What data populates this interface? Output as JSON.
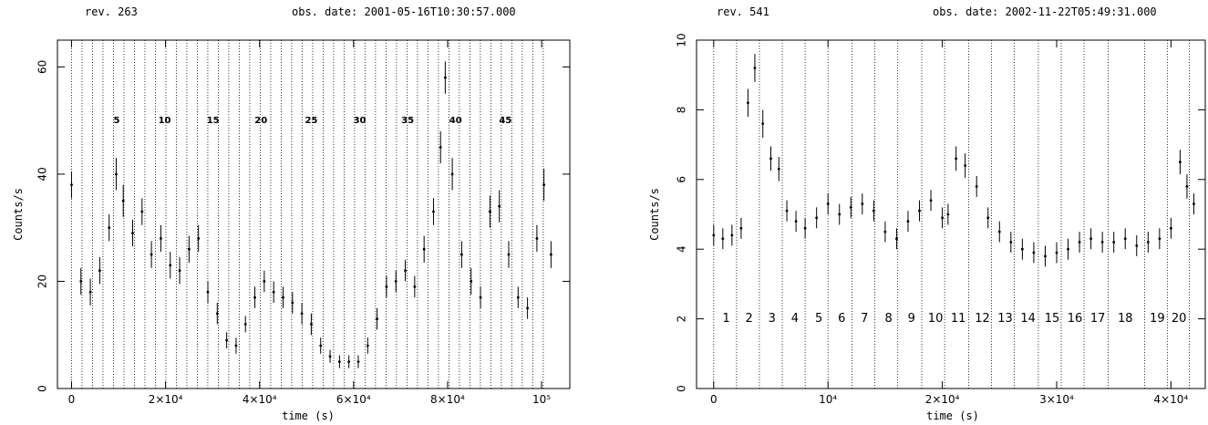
{
  "chart_data": [
    {
      "type": "scatter",
      "header_left": "rev. 263",
      "header_right": "obs. date: 2001-05-16T10:30:57.000",
      "xlabel": "time (s)",
      "ylabel": "Counts/s",
      "xlim": [
        -3000,
        106000
      ],
      "ylim": [
        0,
        65
      ],
      "xticks": [
        {
          "v": 0,
          "t": "0"
        },
        {
          "v": 20000,
          "t": "2×10⁴"
        },
        {
          "v": 40000,
          "t": "4×10⁴"
        },
        {
          "v": 60000,
          "t": "6×10⁴"
        },
        {
          "v": 80000,
          "t": "8×10⁴"
        },
        {
          "v": 100000,
          "t": "10⁵"
        }
      ],
      "yticks": [
        0,
        20,
        40,
        60
      ],
      "boundaries": [
        0,
        2230,
        4460,
        6690,
        8920,
        11150,
        13380,
        15610,
        17840,
        20070,
        22300,
        24530,
        26760,
        28990,
        31220,
        33450,
        35680,
        37910,
        40140,
        42370,
        44600,
        46830,
        49060,
        51290,
        53520,
        55750,
        57980,
        60210,
        62440,
        64670,
        66900,
        69130,
        71360,
        73590,
        75820,
        78050,
        80280,
        82510,
        84740,
        86970,
        89200,
        91430,
        93660,
        95890,
        98120,
        100350
      ],
      "segment_labels": [
        {
          "x": 9600,
          "y": 50,
          "t": "5"
        },
        {
          "x": 19800,
          "y": 50,
          "t": "10"
        },
        {
          "x": 30100,
          "y": 50,
          "t": "15"
        },
        {
          "x": 40300,
          "y": 50,
          "t": "20"
        },
        {
          "x": 51000,
          "y": 50,
          "t": "25"
        },
        {
          "x": 61300,
          "y": 50,
          "t": "30"
        },
        {
          "x": 71500,
          "y": 50,
          "t": "35"
        },
        {
          "x": 81700,
          "y": 50,
          "t": "40"
        },
        {
          "x": 92300,
          "y": 50,
          "t": "45"
        }
      ],
      "x": [
        0,
        2000,
        4000,
        6000,
        8000,
        9500,
        11000,
        13000,
        15000,
        17000,
        19000,
        21000,
        23000,
        25000,
        27000,
        29000,
        31000,
        33000,
        35000,
        37000,
        39000,
        41000,
        43000,
        45000,
        47000,
        49000,
        51000,
        53000,
        55000,
        57000,
        59000,
        61000,
        63000,
        65000,
        67000,
        69000,
        71000,
        73000,
        75000,
        77000,
        78500,
        79500,
        81000,
        83000,
        85000,
        87000,
        89000,
        91000,
        93000,
        95000,
        97000,
        99000,
        100500,
        102000
      ],
      "values": [
        38,
        20,
        18,
        22,
        30,
        40,
        35,
        29,
        33,
        25,
        28,
        23,
        22,
        26,
        28,
        18,
        14,
        9,
        8,
        12,
        17,
        20,
        18,
        17,
        16,
        14,
        12,
        8,
        6,
        5,
        5,
        5,
        8,
        13,
        19,
        20,
        22,
        19,
        26,
        33,
        45,
        58,
        40,
        25,
        20,
        17,
        33,
        34,
        25,
        17,
        15,
        28,
        38,
        25
      ],
      "err": [
        2.5,
        2.5,
        2.5,
        2.5,
        2.5,
        3,
        3,
        2.5,
        2.5,
        2.5,
        2.5,
        2.5,
        2.5,
        2.5,
        2.5,
        2,
        2,
        1.5,
        1.5,
        1.5,
        2,
        2,
        2,
        2,
        2,
        2,
        2,
        1.5,
        1.2,
        1.2,
        1.2,
        1.2,
        1.5,
        2,
        2,
        2,
        2,
        2,
        2.5,
        2.5,
        3,
        3,
        3,
        2.5,
        2.5,
        2,
        3,
        3,
        2.5,
        2,
        2,
        2.5,
        3,
        2.5
      ]
    },
    {
      "type": "scatter",
      "header_left": "rev. 541",
      "header_right": "obs. date: 2002-11-22T05:49:31.000",
      "xlabel": "time (s)",
      "ylabel": "Counts/s",
      "xlim": [
        -1500,
        43000
      ],
      "ylim": [
        0,
        10
      ],
      "xticks": [
        {
          "v": 0,
          "t": "0"
        },
        {
          "v": 10000,
          "t": "10⁴"
        },
        {
          "v": 20000,
          "t": "2×10⁴"
        },
        {
          "v": 30000,
          "t": "3×10⁴"
        },
        {
          "v": 40000,
          "t": "4×10⁴"
        }
      ],
      "yticks": [
        0,
        2,
        4,
        6,
        8,
        10
      ],
      "boundaries": [
        0,
        2000,
        4000,
        6000,
        8000,
        10000,
        12100,
        14100,
        16100,
        18200,
        20200,
        22300,
        24300,
        26300,
        28400,
        30400,
        32400,
        34500,
        37700,
        39700,
        41600
      ],
      "segment_labels": [
        {
          "x": 1100,
          "y": 2,
          "t": "1"
        },
        {
          "x": 3100,
          "y": 2,
          "t": "2"
        },
        {
          "x": 5100,
          "y": 2,
          "t": "3"
        },
        {
          "x": 7100,
          "y": 2,
          "t": "4"
        },
        {
          "x": 9200,
          "y": 2,
          "t": "5"
        },
        {
          "x": 11200,
          "y": 2,
          "t": "6"
        },
        {
          "x": 13200,
          "y": 2,
          "t": "7"
        },
        {
          "x": 15300,
          "y": 2,
          "t": "8"
        },
        {
          "x": 17300,
          "y": 2,
          "t": "9"
        },
        {
          "x": 19400,
          "y": 2,
          "t": "10"
        },
        {
          "x": 21400,
          "y": 2,
          "t": "11"
        },
        {
          "x": 23500,
          "y": 2,
          "t": "12"
        },
        {
          "x": 25500,
          "y": 2,
          "t": "13"
        },
        {
          "x": 27500,
          "y": 2,
          "t": "14"
        },
        {
          "x": 29600,
          "y": 2,
          "t": "15"
        },
        {
          "x": 31600,
          "y": 2,
          "t": "16"
        },
        {
          "x": 33600,
          "y": 2,
          "t": "17"
        },
        {
          "x": 36000,
          "y": 2,
          "t": "18"
        },
        {
          "x": 38800,
          "y": 2,
          "t": "19"
        },
        {
          "x": 40700,
          "y": 2,
          "t": "20"
        }
      ],
      "x": [
        0,
        800,
        1600,
        2400,
        3000,
        3600,
        4300,
        5000,
        5700,
        6400,
        7200,
        8000,
        9000,
        10000,
        11000,
        12000,
        13000,
        14000,
        15000,
        16000,
        17000,
        18000,
        19000,
        20000,
        20500,
        21200,
        22000,
        23000,
        24000,
        25000,
        26000,
        27000,
        28000,
        29000,
        30000,
        31000,
        32000,
        33000,
        34000,
        35000,
        36000,
        37000,
        38000,
        39000,
        40000,
        40800,
        41400,
        42000
      ],
      "values": [
        4.4,
        4.3,
        4.4,
        4.6,
        8.2,
        9.2,
        7.6,
        6.6,
        6.3,
        5.1,
        4.8,
        4.6,
        4.9,
        5.3,
        5.0,
        5.2,
        5.3,
        5.1,
        4.5,
        4.3,
        4.8,
        5.1,
        5.4,
        4.9,
        5.0,
        6.6,
        6.4,
        5.8,
        4.9,
        4.5,
        4.2,
        4.0,
        3.9,
        3.8,
        3.9,
        4.0,
        4.2,
        4.3,
        4.2,
        4.2,
        4.3,
        4.1,
        4.2,
        4.3,
        4.6,
        6.5,
        5.8,
        5.3
      ],
      "err": [
        0.3,
        0.3,
        0.3,
        0.3,
        0.4,
        0.4,
        0.4,
        0.35,
        0.35,
        0.3,
        0.3,
        0.3,
        0.3,
        0.3,
        0.3,
        0.3,
        0.3,
        0.3,
        0.3,
        0.3,
        0.3,
        0.3,
        0.3,
        0.3,
        0.3,
        0.35,
        0.35,
        0.3,
        0.3,
        0.3,
        0.3,
        0.3,
        0.3,
        0.3,
        0.3,
        0.3,
        0.3,
        0.3,
        0.3,
        0.3,
        0.3,
        0.3,
        0.3,
        0.3,
        0.3,
        0.35,
        0.35,
        0.3
      ]
    }
  ]
}
